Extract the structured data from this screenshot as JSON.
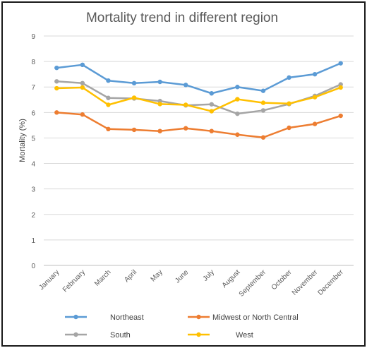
{
  "chart_data": {
    "type": "line",
    "title": "Mortality trend in different region",
    "xlabel": "",
    "ylabel": "Mortality (%)",
    "ylim": [
      0,
      9
    ],
    "yticks": [
      0,
      1,
      2,
      3,
      4,
      5,
      6,
      7,
      8,
      9
    ],
    "grid": "horizontal",
    "legend_position": "bottom",
    "categories": [
      "January",
      "February",
      "March",
      "April",
      "May",
      "June",
      "July",
      "August",
      "September",
      "October",
      "November",
      "December"
    ],
    "series": [
      {
        "name": "Northeast",
        "color": "#5b9bd5",
        "values": [
          7.75,
          7.87,
          7.25,
          7.15,
          7.2,
          7.08,
          6.75,
          7.0,
          6.85,
          7.37,
          7.5,
          7.93
        ]
      },
      {
        "name": "Midwest or North Central",
        "color": "#ed7d31",
        "values": [
          6.0,
          5.92,
          5.35,
          5.32,
          5.27,
          5.38,
          5.27,
          5.13,
          5.02,
          5.4,
          5.55,
          5.87
        ]
      },
      {
        "name": "South",
        "color": "#a5a5a5",
        "values": [
          7.22,
          7.15,
          6.57,
          6.55,
          6.45,
          6.28,
          6.32,
          5.95,
          6.08,
          6.33,
          6.65,
          7.1
        ]
      },
      {
        "name": "West",
        "color": "#ffc000",
        "values": [
          6.95,
          6.98,
          6.3,
          6.58,
          6.33,
          6.3,
          6.05,
          6.52,
          6.38,
          6.35,
          6.6,
          6.98
        ]
      }
    ]
  }
}
